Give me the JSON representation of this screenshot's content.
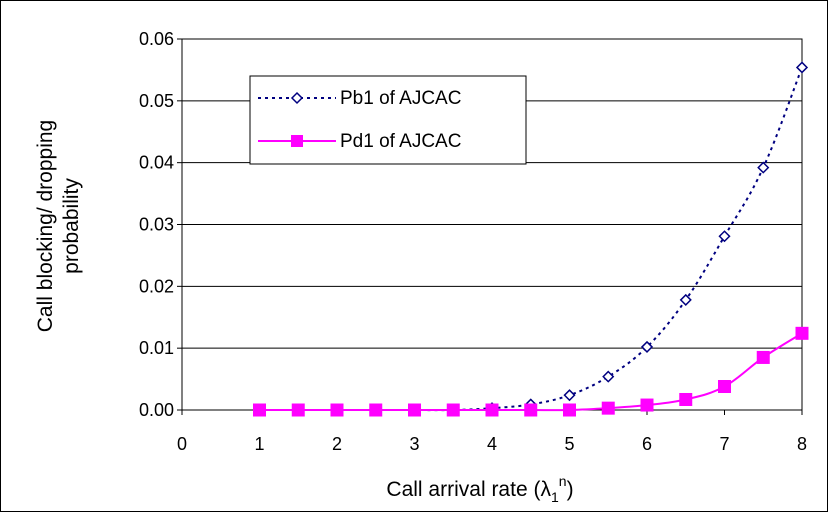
{
  "chart_data": {
    "type": "line",
    "title": "",
    "xlabel": {
      "main": "Call arrival rate (",
      "symbol": "λ",
      "subscript": "1",
      "superscript": "n",
      "close": ")"
    },
    "ylabel_lines": [
      "Call blocking/ dropping",
      "probability"
    ],
    "xlim": [
      0,
      8
    ],
    "ylim": [
      0,
      0.06
    ],
    "x_ticks": [
      "0",
      "1",
      "2",
      "3",
      "4",
      "5",
      "6",
      "7",
      "8"
    ],
    "y_ticks": [
      "0.00",
      "0.01",
      "0.02",
      "0.03",
      "0.04",
      "0.05",
      "0.06"
    ],
    "grid": "horizontal",
    "legend_position": "top-left",
    "series": [
      {
        "name": "Pb1 of AJCAC",
        "color": "#000080",
        "line_style": "dotted",
        "marker": "diamond-open",
        "x": [
          1,
          1.5,
          2,
          2.5,
          3,
          3.5,
          4,
          4.5,
          5,
          5.5,
          6,
          6.5,
          7,
          7.5,
          8
        ],
        "values": [
          0,
          0,
          0,
          0,
          0,
          0,
          0.0003,
          0.0009,
          0.0024,
          0.0054,
          0.0102,
          0.0178,
          0.0281,
          0.0392,
          0.0554
        ]
      },
      {
        "name": "Pd1 of AJCAC",
        "color": "#ff00ff",
        "line_style": "solid",
        "marker": "square-filled",
        "x": [
          1,
          1.5,
          2,
          2.5,
          3,
          3.5,
          4,
          4.5,
          5,
          5.5,
          6,
          6.5,
          7,
          7.5,
          8
        ],
        "values": [
          0,
          0,
          0,
          0,
          0,
          0,
          0,
          0,
          0,
          0.0003,
          0.0008,
          0.0017,
          0.0038,
          0.0085,
          0.0124
        ]
      }
    ]
  }
}
